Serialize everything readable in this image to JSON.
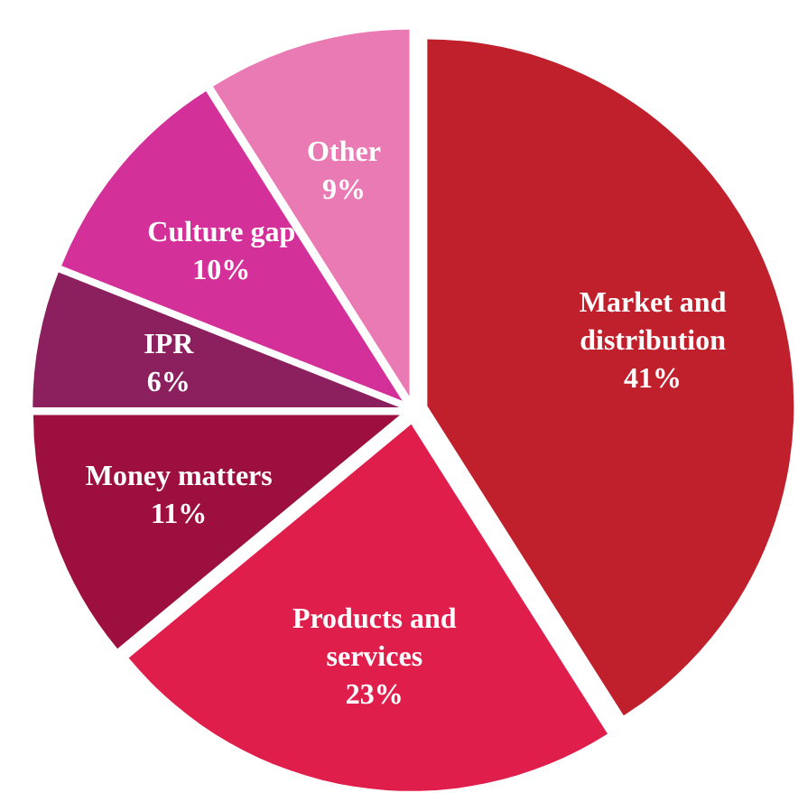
{
  "chart_data": {
    "type": "pie",
    "categories": [
      "Market and distribution",
      "Products and services",
      "Money matters",
      "IPR",
      "Culture gap",
      "Other"
    ],
    "values": [
      41,
      23,
      11,
      6,
      10,
      9
    ],
    "value_labels": [
      "41%",
      "23%",
      "11%",
      "6%",
      "10%",
      "9%"
    ],
    "colors": [
      "#c01f2c",
      "#e01e4c",
      "#9c0f3e",
      "#8c1f5e",
      "#d3309a",
      "#ea7ab4"
    ]
  }
}
